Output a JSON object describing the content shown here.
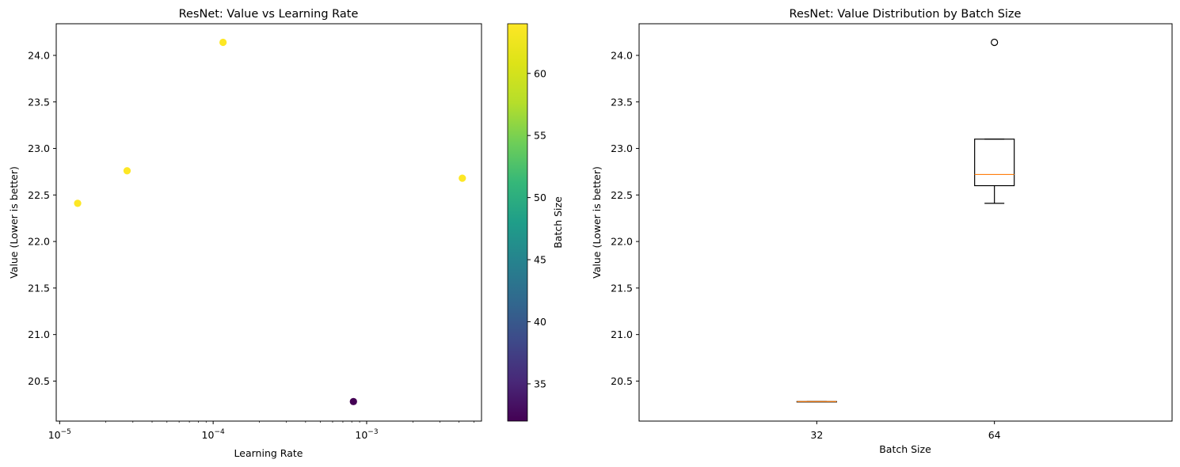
{
  "chart_data": [
    {
      "type": "scatter",
      "title": "ResNet: Value vs Learning Rate",
      "xlabel": "Learning Rate",
      "ylabel": "Value (Lower is better)",
      "xscale": "log",
      "xlim": [
        9.5e-06,
        0.0056
      ],
      "ylim": [
        20.07,
        24.34
      ],
      "xticks": [
        {
          "value": 1e-05,
          "base": "10",
          "exp": "−5"
        },
        {
          "value": 0.0001,
          "base": "10",
          "exp": "−4"
        },
        {
          "value": 0.001,
          "base": "10",
          "exp": "−3"
        }
      ],
      "yticks": [
        "20.5",
        "21.0",
        "21.5",
        "22.0",
        "22.5",
        "23.0",
        "23.5",
        "24.0"
      ],
      "points": [
        {
          "x": 1.31e-05,
          "y": 22.41,
          "batch_size": 64
        },
        {
          "x": 2.75e-05,
          "y": 22.76,
          "batch_size": 64
        },
        {
          "x": 0.000116,
          "y": 24.14,
          "batch_size": 64
        },
        {
          "x": 0.00082,
          "y": 20.28,
          "batch_size": 32
        },
        {
          "x": 0.0042,
          "y": 22.68,
          "batch_size": 64
        }
      ],
      "colorbar": {
        "label": "Batch Size",
        "colormap": "viridis",
        "range": [
          32,
          64
        ],
        "ticks": [
          "35",
          "40",
          "45",
          "50",
          "55",
          "60"
        ]
      },
      "grid": false
    },
    {
      "type": "box",
      "title": "ResNet: Value Distribution by Batch Size",
      "xlabel": "Batch Size",
      "ylabel": "Value (Lower is better)",
      "categories": [
        "32",
        "64"
      ],
      "ylim": [
        20.07,
        24.34
      ],
      "yticks": [
        "20.5",
        "21.0",
        "21.5",
        "22.0",
        "22.5",
        "23.0",
        "23.5",
        "24.0"
      ],
      "boxes": [
        {
          "category": "32",
          "whisker_low": 20.28,
          "q1": 20.28,
          "median": 20.28,
          "q3": 20.28,
          "whisker_high": 20.28,
          "outliers": []
        },
        {
          "category": "64",
          "whisker_low": 22.41,
          "q1": 22.6,
          "median": 22.72,
          "q3": 23.1,
          "whisker_high": 23.1,
          "outliers": [
            24.14
          ]
        }
      ],
      "colors": {
        "box": "#000000",
        "median": "#ff7f0e"
      },
      "grid": false
    }
  ]
}
